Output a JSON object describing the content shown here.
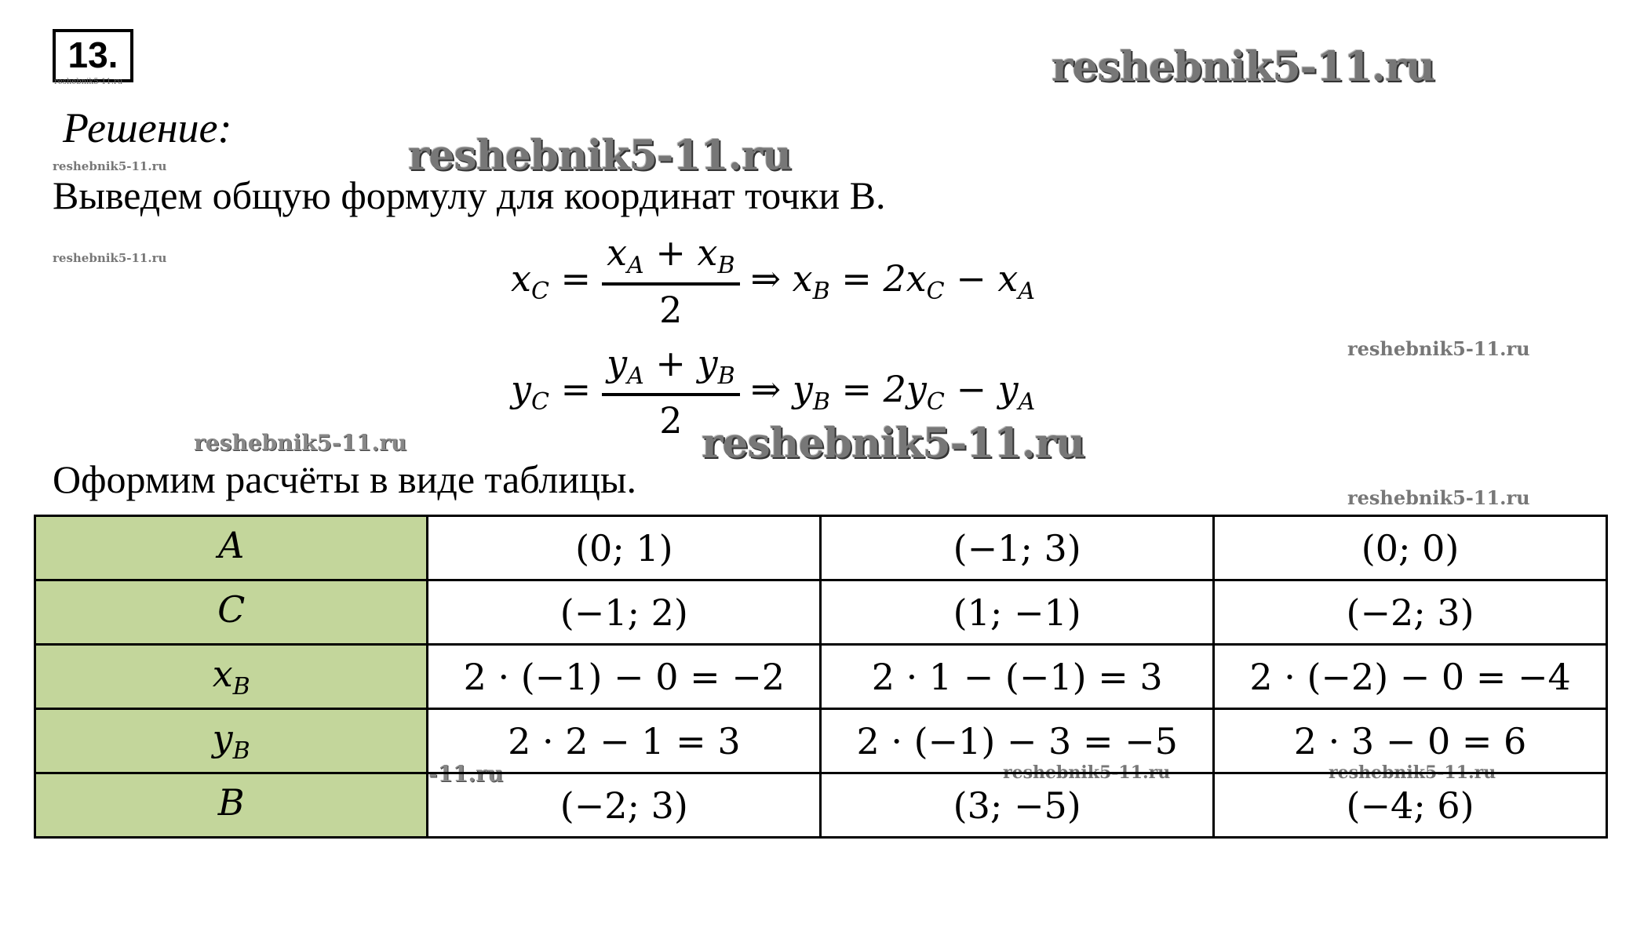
{
  "problem_number": "13.",
  "heading": "Решение:",
  "intro": "Выведем общую формулу для координат точки B.",
  "formulas": [
    {
      "lhs": "x",
      "lhs_sub": "C",
      "num_a": "x",
      "num_a_sub": "A",
      "num_b": "x",
      "num_b_sub": "B",
      "den": "2",
      "rhs": "⇒ x",
      "rhs_sub": "B",
      "rhs_rest": "= 2x",
      "rhs_rest_sub": "C",
      "rhs_tail": "− x",
      "rhs_tail_sub": "A"
    },
    {
      "lhs": "y",
      "lhs_sub": "C",
      "num_a": "y",
      "num_a_sub": "A",
      "num_b": "y",
      "num_b_sub": "B",
      "den": "2",
      "rhs": "⇒ y",
      "rhs_sub": "B",
      "rhs_rest": "= 2y",
      "rhs_rest_sub": "C",
      "rhs_tail": "− y",
      "rhs_tail_sub": "A"
    }
  ],
  "table_intro": "Оформим расчёты в виде таблицы.",
  "table": {
    "header_color": "#c3d69b",
    "rows": [
      {
        "label": "A",
        "label_sub": "",
        "cells": [
          "(0; 1)",
          "(−1; 3)",
          "(0; 0)"
        ]
      },
      {
        "label": "C",
        "label_sub": "",
        "cells": [
          "(−1; 2)",
          "(1; −1)",
          "(−2; 3)"
        ]
      },
      {
        "label": "x",
        "label_sub": "B",
        "cells": [
          "2 · (−1) − 0 = −2",
          "2 · 1 − (−1) = 3",
          "2 · (−2) − 0 = −4"
        ]
      },
      {
        "label": "y",
        "label_sub": "B",
        "cells": [
          "2 · 2 − 1 = 3",
          "2 · (−1) − 3 = −5",
          "2 · 3 − 0 = 6"
        ]
      },
      {
        "label": "B",
        "label_sub": "",
        "cells": [
          "(−2; 3)",
          "(3; −5)",
          "(−4; 6)"
        ]
      }
    ]
  },
  "watermark": "reshebnik5-11.ru"
}
